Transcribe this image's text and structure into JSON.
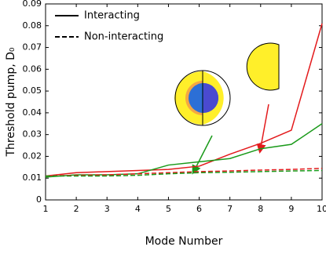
{
  "chart_data": {
    "type": "line",
    "x_label": "Mode Number",
    "y_label": "Threshold pump, D₀",
    "x": [
      1,
      2,
      3,
      4,
      5,
      6,
      7,
      8,
      9,
      10
    ],
    "xlim": [
      1,
      10
    ],
    "xticks": [
      1,
      2,
      3,
      4,
      5,
      6,
      7,
      8,
      9,
      10
    ],
    "ylim": [
      0,
      0.09
    ],
    "yticks": [
      0,
      0.01,
      0.02,
      0.03,
      0.04,
      0.05,
      0.06,
      0.07,
      0.08,
      0.09
    ],
    "legend_position": "upper left",
    "legend": [
      {
        "label": "Interacting",
        "dashed": false
      },
      {
        "label": "Non-interacting",
        "dashed": true
      }
    ],
    "series": [
      {
        "color": "#e31a1c",
        "dashed": false,
        "values": [
          0.011,
          0.0125,
          0.013,
          0.0135,
          0.014,
          0.0155,
          0.021,
          0.026,
          0.032,
          0.081
        ]
      },
      {
        "color": "#1a9a1a",
        "dashed": false,
        "values": [
          0.0105,
          0.0115,
          0.0115,
          0.012,
          0.016,
          0.0175,
          0.019,
          0.0235,
          0.0255,
          0.035
        ]
      },
      {
        "color": "#e31a1c",
        "dashed": true,
        "values": [
          0.011,
          0.0113,
          0.0115,
          0.012,
          0.0125,
          0.013,
          0.0133,
          0.0137,
          0.014,
          0.0145
        ]
      },
      {
        "color": "#1a9a1a",
        "dashed": true,
        "values": [
          0.011,
          0.011,
          0.011,
          0.0113,
          0.012,
          0.0125,
          0.0127,
          0.013,
          0.0133,
          0.0135
        ]
      }
    ]
  }
}
